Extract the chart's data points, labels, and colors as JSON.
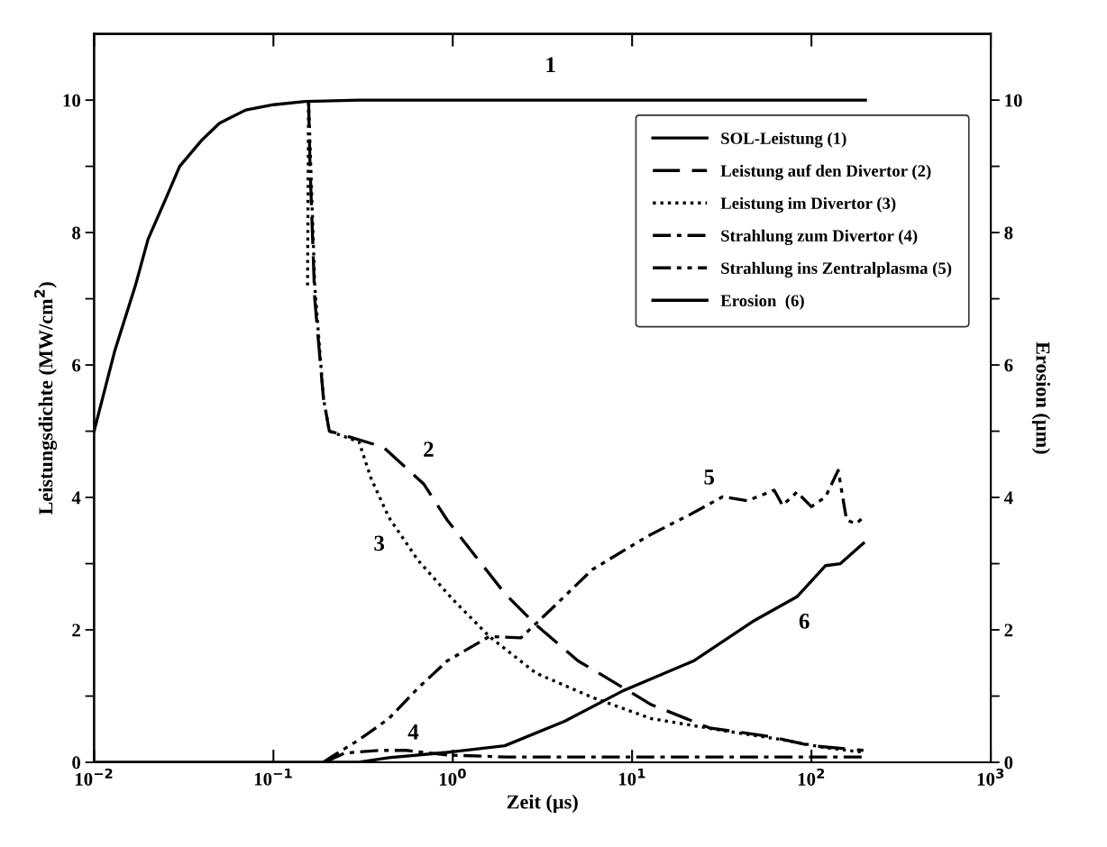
{
  "chart_data": {
    "type": "line",
    "xlabel": "Zeit (µs)",
    "ylabel": "Leistungsdichte (MW/cm$^{2}$)",
    "y2label": "Erosion (µm)",
    "log": "x",
    "xlim": [
      0.01,
      1000
    ],
    "xticks": [
      {
        "value": 0.01,
        "label": "10$^{−2}$"
      },
      {
        "value": 0.1,
        "label": "10$^{−1}$"
      },
      {
        "value": 1,
        "label": "10$^{0}$"
      },
      {
        "value": 10,
        "label": "10$^{1}$"
      },
      {
        "value": 100,
        "label": "10$^{2}$"
      },
      {
        "value": 1000,
        "label": "10$^{3}$"
      }
    ],
    "ylim": [
      0,
      11
    ],
    "yticks": [
      0,
      {
        "value": 1,
        "label": null
      },
      2,
      {
        "value": 3,
        "label": null
      },
      4,
      {
        "value": 5,
        "label": null
      },
      6,
      {
        "value": 7,
        "label": null
      },
      8,
      {
        "value": 9,
        "label": null
      },
      10
    ],
    "y2lim": [
      0,
      11
    ],
    "y2ticks": [
      0,
      {
        "value": 1,
        "label": null
      },
      2,
      {
        "value": 3,
        "label": null
      },
      4,
      {
        "value": 5,
        "label": null
      },
      6,
      {
        "value": 7,
        "label": null
      },
      8,
      {
        "value": 9,
        "label": null
      },
      10
    ],
    "legend": "top right",
    "grid": false,
    "series": [
      {
        "name": "SOL-Leistung (1)",
        "color": "#000000",
        "line_style": "solid",
        "x": [
          0.01,
          0.013,
          0.017,
          0.02,
          0.025,
          0.03,
          0.04,
          0.05,
          0.07,
          0.1,
          0.15,
          0.3,
          1,
          10,
          100,
          200
        ],
        "values": [
          5.0,
          6.2,
          7.2,
          7.9,
          8.5,
          9.0,
          9.4,
          9.65,
          9.85,
          9.93,
          9.98,
          10,
          10,
          10,
          10,
          10
        ]
      },
      {
        "name": "Leistung auf den Divertor (2)",
        "color": "#000000",
        "line_style": "dashed",
        "x": [
          0.157,
          0.16,
          0.17,
          0.19,
          0.205,
          0.22,
          0.41,
          0.69,
          0.93,
          1.35,
          1.95,
          2.9,
          5.0,
          6.5,
          12.8,
          27,
          58,
          100,
          195
        ],
        "values": [
          10,
          9,
          7,
          5.5,
          5.0,
          4.98,
          4.76,
          4.2,
          3.66,
          3.1,
          2.55,
          2.08,
          1.53,
          1.35,
          0.87,
          0.52,
          0.39,
          0.25,
          0.18
        ]
      },
      {
        "name": "Leistung im Divertor (3)",
        "color": "#000000",
        "line_style": "dotted",
        "x": [
          0.155,
          0.157,
          0.17,
          0.19,
          0.205,
          0.3,
          0.35,
          0.44,
          0.64,
          1.0,
          1.6,
          2.9,
          6.0,
          12.8,
          32,
          69,
          120,
          195
        ],
        "values": [
          7.2,
          10,
          7.2,
          5.5,
          5.0,
          4.84,
          4.29,
          3.7,
          3.05,
          2.46,
          1.9,
          1.35,
          0.98,
          0.66,
          0.48,
          0.34,
          0.22,
          0.15
        ]
      },
      {
        "name": "Strahlung zum Divertor (4)",
        "color": "#000000",
        "line_style": "dashdot",
        "x": [
          0.2,
          0.25,
          0.39,
          0.55,
          0.93,
          2,
          10,
          100,
          195
        ],
        "values": [
          0.02,
          0.14,
          0.18,
          0.18,
          0.11,
          0.08,
          0.08,
          0.08,
          0.08
        ]
      },
      {
        "name": "Strahlung ins Zentralplasma (5)",
        "color": "#000000",
        "line_style": "dashdotdot",
        "x": [
          0.19,
          0.21,
          0.3,
          0.44,
          0.64,
          0.93,
          1.6,
          2.4,
          3.5,
          6.0,
          12.3,
          21,
          32,
          44,
          62,
          69,
          83,
          100,
          120,
          141,
          157,
          177,
          195
        ],
        "values": [
          0.0,
          0.08,
          0.34,
          0.66,
          1.12,
          1.53,
          1.9,
          1.88,
          2.3,
          2.91,
          3.42,
          3.74,
          4.01,
          3.95,
          4.11,
          3.88,
          4.08,
          3.86,
          4.01,
          4.41,
          3.66,
          3.6,
          3.7
        ]
      },
      {
        "name": "Erosion  (6)",
        "color": "#000000",
        "line_style": "solid",
        "x": [
          0.01,
          0.3,
          0.44,
          0.93,
          1.95,
          4.2,
          8.9,
          22,
          48,
          83,
          120,
          145,
          195
        ],
        "values": [
          0.0,
          0.0,
          0.07,
          0.15,
          0.25,
          0.62,
          1.08,
          1.53,
          2.14,
          2.5,
          2.97,
          3.0,
          3.31
        ]
      }
    ],
    "annotations": [
      "1",
      "2",
      "3",
      "4",
      "5",
      "6"
    ]
  }
}
